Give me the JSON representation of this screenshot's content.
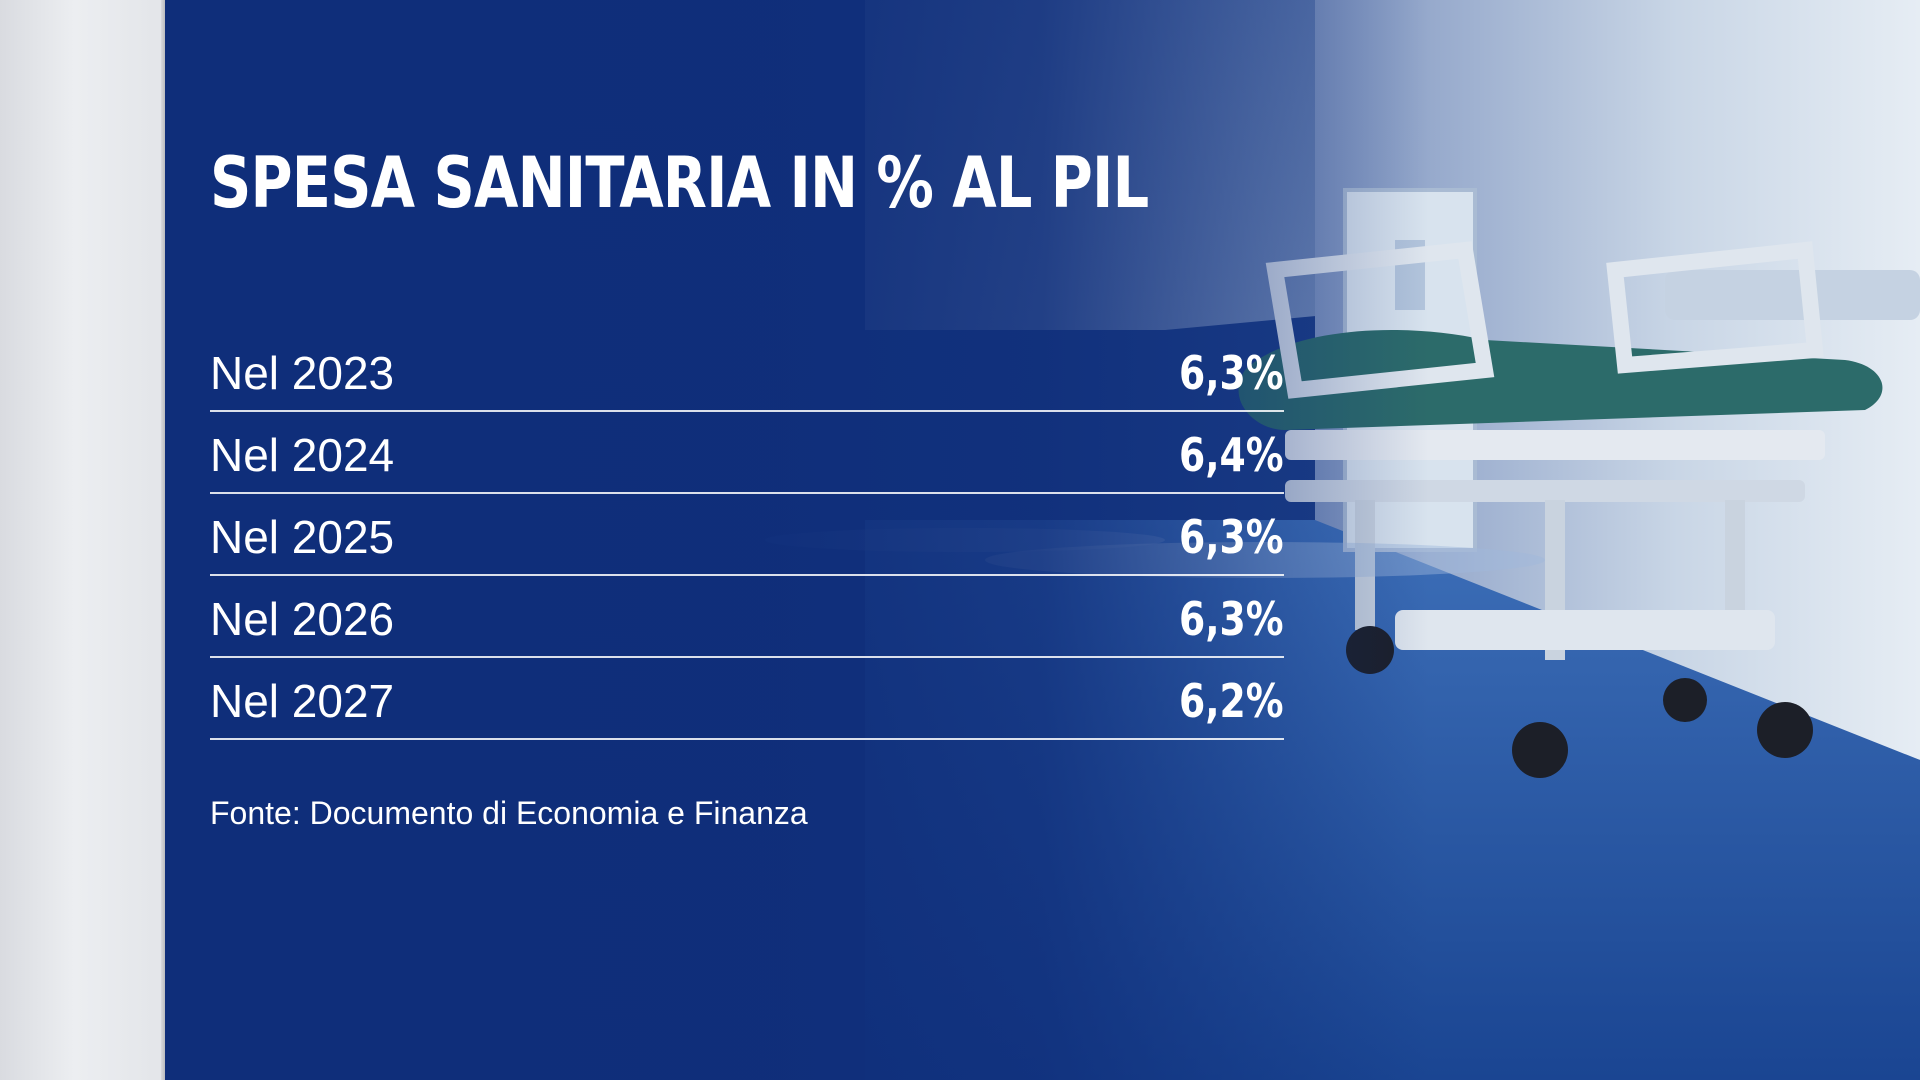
{
  "title": "SPESA SANITARIA IN % AL PIL",
  "source": "Fonte: Documento di Economia e Finanza",
  "colors": {
    "panel_blue": "#0f2e7a",
    "text": "#ffffff",
    "divider": "#ffffff"
  },
  "background": "hospital-corridor-with-stretcher-photo",
  "chart_data": {
    "type": "table",
    "title": "SPESA SANITARIA IN % AL PIL",
    "rows": [
      {
        "label": "Nel 2023",
        "value": "6,3%"
      },
      {
        "label": "Nel 2024",
        "value": "6,4%"
      },
      {
        "label": "Nel 2025",
        "value": "6,3%"
      },
      {
        "label": "Nel 2026",
        "value": "6,3%"
      },
      {
        "label": "Nel 2027",
        "value": "6,2%"
      }
    ],
    "source": "Fonte: Documento di Economia e Finanza"
  }
}
